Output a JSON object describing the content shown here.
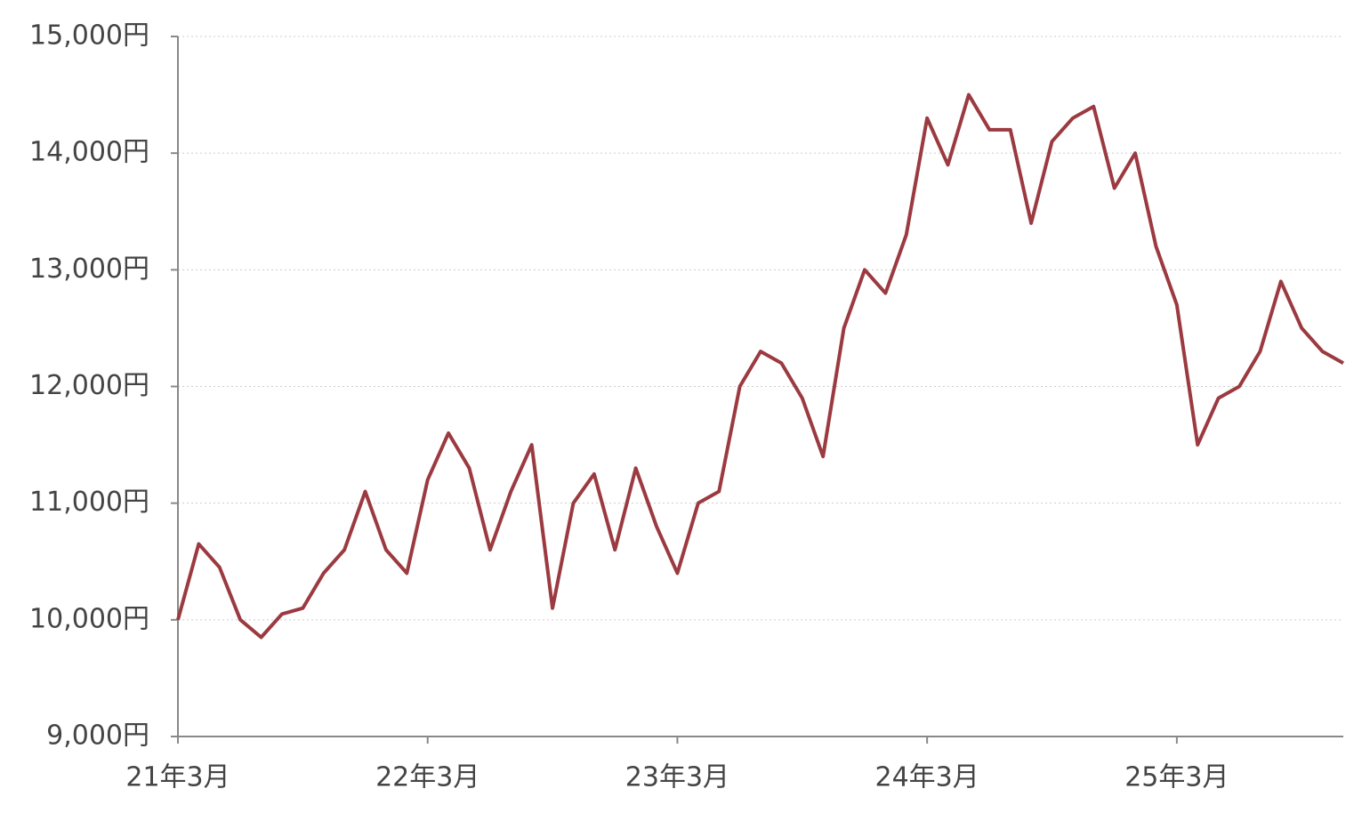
{
  "chart_data": {
    "type": "line",
    "categories": [
      "21年3月",
      null,
      null,
      null,
      null,
      null,
      null,
      null,
      null,
      null,
      null,
      null,
      "22年3月",
      null,
      null,
      null,
      null,
      null,
      null,
      null,
      null,
      null,
      null,
      null,
      "23年3月",
      null,
      null,
      null,
      null,
      null,
      null,
      null,
      null,
      null,
      null,
      null,
      "24年3月",
      null,
      null,
      null,
      null,
      null,
      null,
      null,
      null,
      null,
      null,
      null,
      "25年3月",
      null,
      null,
      null,
      null,
      null,
      null,
      null,
      null
    ],
    "series": [
      {
        "color": "#9b3a40",
        "values": [
          10000,
          10650,
          10450,
          10000,
          9850,
          10050,
          10100,
          10400,
          10600,
          11100,
          10600,
          10400,
          11200,
          11600,
          11300,
          10600,
          11100,
          11500,
          10100,
          11000,
          11250,
          10600,
          11300,
          10800,
          10400,
          11000,
          11100,
          12000,
          12300,
          12200,
          11900,
          11400,
          12500,
          13000,
          12800,
          13300,
          14300,
          13900,
          14500,
          14200,
          14200,
          13400,
          14100,
          14300,
          14400,
          13700,
          14000,
          13200,
          12700,
          11500,
          11900,
          12000,
          12300,
          12900,
          12500,
          12300,
          12200
        ]
      }
    ],
    "ylim": [
      9000,
      15000
    ],
    "yticks": [
      {
        "value": 9000,
        "label": "9,000円"
      },
      {
        "value": 10000,
        "label": "10,000円"
      },
      {
        "value": 11000,
        "label": "11,000円"
      },
      {
        "value": 12000,
        "label": "12,000円"
      },
      {
        "value": 13000,
        "label": "13,000円"
      },
      {
        "value": 14000,
        "label": "14,000円"
      },
      {
        "value": 15000,
        "label": "15,000円"
      }
    ],
    "grid": true
  }
}
